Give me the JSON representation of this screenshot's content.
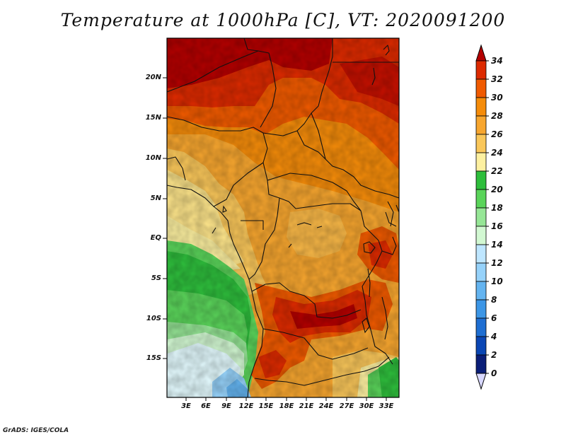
{
  "title": "Temperature at 1000hPa [C], VT: 2020091200",
  "credit": "GrADS: IGES/COLA",
  "lat_labels": [
    "20N",
    "15N",
    "10N",
    "5N",
    "EQ",
    "5S",
    "10S",
    "15S"
  ],
  "lon_labels": [
    "3E",
    "6E",
    "9E",
    "12E",
    "15E",
    "18E",
    "21E",
    "24E",
    "27E",
    "30E",
    "33E"
  ],
  "colorbar": {
    "levels": [
      "34",
      "32",
      "30",
      "28",
      "26",
      "24",
      "22",
      "20",
      "18",
      "16",
      "14",
      "12",
      "10",
      "8",
      "6",
      "4",
      "2",
      "0"
    ],
    "colors": [
      "#b40000",
      "#dd2a00",
      "#f05a00",
      "#f58c0a",
      "#f7a62f",
      "#fac75a",
      "#fdf0a0",
      "#2ebe3c",
      "#5ad45a",
      "#96e696",
      "#d2f8d2",
      "#bee6ff",
      "#96d2fa",
      "#64b4f0",
      "#3c96e6",
      "#1e6ed2",
      "#0a46b4",
      "#0a1e78",
      "#d8d8ff"
    ]
  }
}
